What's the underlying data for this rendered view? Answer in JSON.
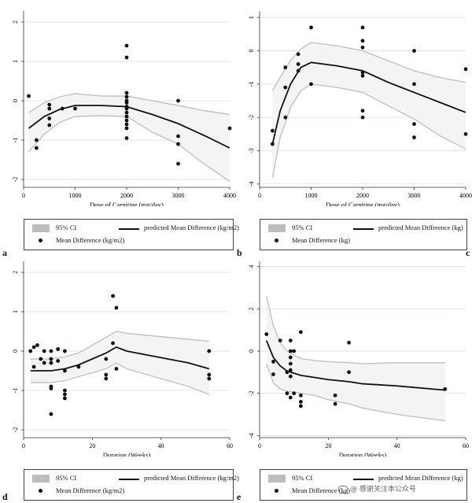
{
  "panels": [
    {
      "id": "a",
      "letter": "a",
      "xlabel": "Dose of Carnitine (mg/day)",
      "legend": {
        "ci": "95% CI",
        "line": "predicted Mean Difference (kg/m2)",
        "dot": "Mean Difference (kg/m2)"
      }
    },
    {
      "id": "b",
      "letter": "b",
      "xlabel": "Dose of Carnitine (mg/day)",
      "legend": {
        "ci": "95% CI",
        "line": "predicted Mean Difference (kg)",
        "dot": "Mean Difference (kg)"
      }
    },
    {
      "id": "d",
      "letter": "d",
      "xlabel": "Duration (Weeks)",
      "legend": {
        "ci": "95% CI",
        "line": "predicted Mean Difference (kg/m2)",
        "dot": "Mean Difference (kg/m2)"
      }
    },
    {
      "id": "e",
      "letter": "e",
      "xlabel": "Duration (Weeks)",
      "legend": {
        "ci": "95% CI",
        "line": "predicted Mean Difference (kg)",
        "dot": "Mean Difference (kg)"
      }
    }
  ],
  "extra_letter": "c",
  "watermark": "@ 感谢关注本公众号",
  "colors": {
    "ci_band": "#c2c2c2",
    "line": "#111111",
    "points": "#111111",
    "grid": "#cfe6cf"
  },
  "chart_data": [
    {
      "id": "a",
      "type": "line",
      "xlabel": "Dose of Carnitine (mg/day)",
      "xlim": [
        0,
        4000
      ],
      "xticks": [
        0,
        1000,
        2000,
        3000,
        4000
      ],
      "ylim": [
        -2.2,
        2.2
      ],
      "yticks": [
        -2,
        -1,
        0,
        1,
        2
      ],
      "grid": "horizontal",
      "line_x": [
        100,
        400,
        700,
        1000,
        1500,
        2000,
        2500,
        3000,
        3500,
        4000
      ],
      "line_y": [
        -0.7,
        -0.4,
        -0.22,
        -0.12,
        -0.12,
        -0.15,
        -0.35,
        -0.58,
        -0.88,
        -1.2
      ],
      "ci_upper": [
        -0.3,
        -0.05,
        0.1,
        0.18,
        0.12,
        0.12,
        0.0,
        -0.12,
        -0.25,
        -0.35
      ],
      "ci_lower": [
        -1.3,
        -0.85,
        -0.55,
        -0.4,
        -0.38,
        -0.4,
        -0.8,
        -1.1,
        -1.6,
        -2.05
      ],
      "points": [
        [
          100,
          0.12
        ],
        [
          250,
          -1.0
        ],
        [
          250,
          -1.2
        ],
        [
          500,
          -0.1
        ],
        [
          500,
          -0.2
        ],
        [
          500,
          -0.45
        ],
        [
          500,
          -0.62
        ],
        [
          750,
          -0.2
        ],
        [
          1000,
          -0.2
        ],
        [
          2000,
          1.4
        ],
        [
          2000,
          1.1
        ],
        [
          2000,
          0.2
        ],
        [
          2000,
          0.1
        ],
        [
          2000,
          0.0
        ],
        [
          2000,
          -0.05
        ],
        [
          2000,
          -0.15
        ],
        [
          2000,
          -0.2
        ],
        [
          2000,
          -0.3
        ],
        [
          2000,
          -0.4
        ],
        [
          2000,
          -0.5
        ],
        [
          2000,
          -0.6
        ],
        [
          2000,
          -0.7
        ],
        [
          2000,
          -0.95
        ],
        [
          3000,
          0.0
        ],
        [
          3000,
          -0.9
        ],
        [
          3000,
          -1.1
        ],
        [
          3000,
          -1.6
        ],
        [
          4000,
          -0.7
        ]
      ]
    },
    {
      "id": "b",
      "type": "line",
      "xlabel": "Dose of Carnitine (mg/day)",
      "xlim": [
        0,
        4000
      ],
      "xticks": [
        0,
        1000,
        2000,
        3000,
        4000
      ],
      "ylim": [
        -4.1,
        1.1
      ],
      "yticks": [
        -4,
        -3,
        -2,
        -1,
        0,
        1
      ],
      "grid": "horizontal",
      "line_x": [
        250,
        400,
        600,
        800,
        1000,
        1500,
        2000,
        2500,
        3000,
        3500,
        4000
      ],
      "line_y": [
        -2.8,
        -1.8,
        -1.0,
        -0.5,
        -0.35,
        -0.45,
        -0.6,
        -0.95,
        -1.25,
        -1.55,
        -1.85
      ],
      "ci_upper": [
        -1.2,
        -0.8,
        -0.3,
        0.05,
        0.25,
        0.15,
        0.0,
        -0.3,
        -0.6,
        -0.8,
        -0.95
      ],
      "ci_lower": [
        -3.8,
        -2.6,
        -1.7,
        -1.2,
        -1.0,
        -1.1,
        -1.25,
        -1.65,
        -2.05,
        -2.55,
        -2.95
      ],
      "points": [
        [
          250,
          -2.4
        ],
        [
          250,
          -2.8
        ],
        [
          500,
          -0.5
        ],
        [
          500,
          -1.1
        ],
        [
          500,
          -2.0
        ],
        [
          750,
          -0.4
        ],
        [
          750,
          -0.6
        ],
        [
          750,
          -0.1
        ],
        [
          1000,
          0.7
        ],
        [
          1000,
          -1.0
        ],
        [
          2000,
          0.7
        ],
        [
          2000,
          0.3
        ],
        [
          2000,
          0.1
        ],
        [
          2000,
          -0.65
        ],
        [
          2000,
          -0.75
        ],
        [
          2000,
          -1.8
        ],
        [
          2000,
          -2.0
        ],
        [
          3000,
          0.0
        ],
        [
          3000,
          -1.0
        ],
        [
          3000,
          -2.2
        ],
        [
          3000,
          -2.6
        ],
        [
          4000,
          -0.55
        ],
        [
          4000,
          -2.5
        ]
      ]
    },
    {
      "id": "d",
      "type": "line",
      "xlabel": "Duration (Weeks)",
      "xlim": [
        0,
        60
      ],
      "xticks": [
        0,
        20,
        40,
        60
      ],
      "ylim": [
        -2.2,
        2.2
      ],
      "yticks": [
        -2,
        -1,
        0,
        1,
        2
      ],
      "grid": "horizontal",
      "line_x": [
        2,
        8,
        12,
        16,
        20,
        24,
        27,
        30,
        36,
        42,
        48,
        54
      ],
      "line_y": [
        -0.5,
        -0.5,
        -0.45,
        -0.35,
        -0.2,
        -0.05,
        0.1,
        0.0,
        -0.1,
        -0.2,
        -0.3,
        -0.45
      ],
      "ci_upper": [
        -0.2,
        -0.2,
        -0.15,
        -0.05,
        0.15,
        0.35,
        0.5,
        0.45,
        0.4,
        0.35,
        0.3,
        0.25
      ],
      "ci_lower": [
        -0.8,
        -0.8,
        -0.75,
        -0.65,
        -0.55,
        -0.45,
        -0.3,
        -0.45,
        -0.6,
        -0.75,
        -0.9,
        -1.1
      ],
      "points": [
        [
          2,
          0.0
        ],
        [
          3,
          0.1
        ],
        [
          3,
          -0.4
        ],
        [
          4,
          0.15
        ],
        [
          5,
          -0.2
        ],
        [
          6,
          0.0
        ],
        [
          6,
          -0.3
        ],
        [
          8,
          0.0
        ],
        [
          8,
          -0.2
        ],
        [
          8,
          -0.3
        ],
        [
          8,
          -0.9
        ],
        [
          8,
          -0.95
        ],
        [
          8,
          -1.6
        ],
        [
          10,
          0.05
        ],
        [
          10,
          -0.25
        ],
        [
          12,
          0.0
        ],
        [
          12,
          -0.5
        ],
        [
          12,
          -1.0
        ],
        [
          12,
          -1.1
        ],
        [
          12,
          -1.2
        ],
        [
          16,
          -0.4
        ],
        [
          24,
          -0.2
        ],
        [
          24,
          -0.6
        ],
        [
          24,
          -0.7
        ],
        [
          26,
          1.4
        ],
        [
          26,
          0.2
        ],
        [
          27,
          1.1
        ],
        [
          27,
          -0.45
        ],
        [
          54,
          0.0
        ],
        [
          54,
          -0.6
        ],
        [
          54,
          -0.7
        ]
      ]
    },
    {
      "id": "e",
      "type": "line",
      "xlabel": "Duration (Weeks)",
      "xlim": [
        0,
        60
      ],
      "xticks": [
        0,
        20,
        40,
        60
      ],
      "ylim": [
        -4.1,
        4.1
      ],
      "yticks": [
        -4,
        -2,
        0,
        2,
        4
      ],
      "grid": "horizontal",
      "line_x": [
        2,
        4,
        6,
        8,
        10,
        12,
        16,
        20,
        26,
        30,
        40,
        54
      ],
      "line_y": [
        0.5,
        -0.3,
        -0.7,
        -0.95,
        -1.05,
        -1.15,
        -1.25,
        -1.35,
        -1.45,
        -1.55,
        -1.65,
        -1.85
      ],
      "ci_upper": [
        2.6,
        1.2,
        0.4,
        0.0,
        -0.2,
        -0.35,
        -0.45,
        -0.5,
        -0.55,
        -0.6,
        -0.55,
        -0.55
      ],
      "ci_lower": [
        -0.6,
        -1.5,
        -1.8,
        -1.9,
        -1.95,
        -2.0,
        -2.1,
        -2.3,
        -2.5,
        -2.7,
        -3.0,
        -3.3
      ],
      "points": [
        [
          2,
          0.8
        ],
        [
          4,
          -0.5
        ],
        [
          4,
          -1.1
        ],
        [
          6,
          0.5
        ],
        [
          8,
          -1.0
        ],
        [
          8,
          -2.0
        ],
        [
          9,
          0.5
        ],
        [
          9,
          0.0
        ],
        [
          9,
          -0.3
        ],
        [
          9,
          -0.6
        ],
        [
          9,
          -0.9
        ],
        [
          9,
          -1.2
        ],
        [
          9,
          -2.2
        ],
        [
          10,
          0.0
        ],
        [
          10,
          -2.0
        ],
        [
          12,
          0.9
        ],
        [
          12,
          -2.1
        ],
        [
          12,
          -2.4
        ],
        [
          12,
          -2.6
        ],
        [
          22,
          -2.1
        ],
        [
          22,
          -2.5
        ],
        [
          26,
          -1.0
        ],
        [
          26,
          0.4
        ],
        [
          54,
          -1.8
        ]
      ]
    }
  ]
}
